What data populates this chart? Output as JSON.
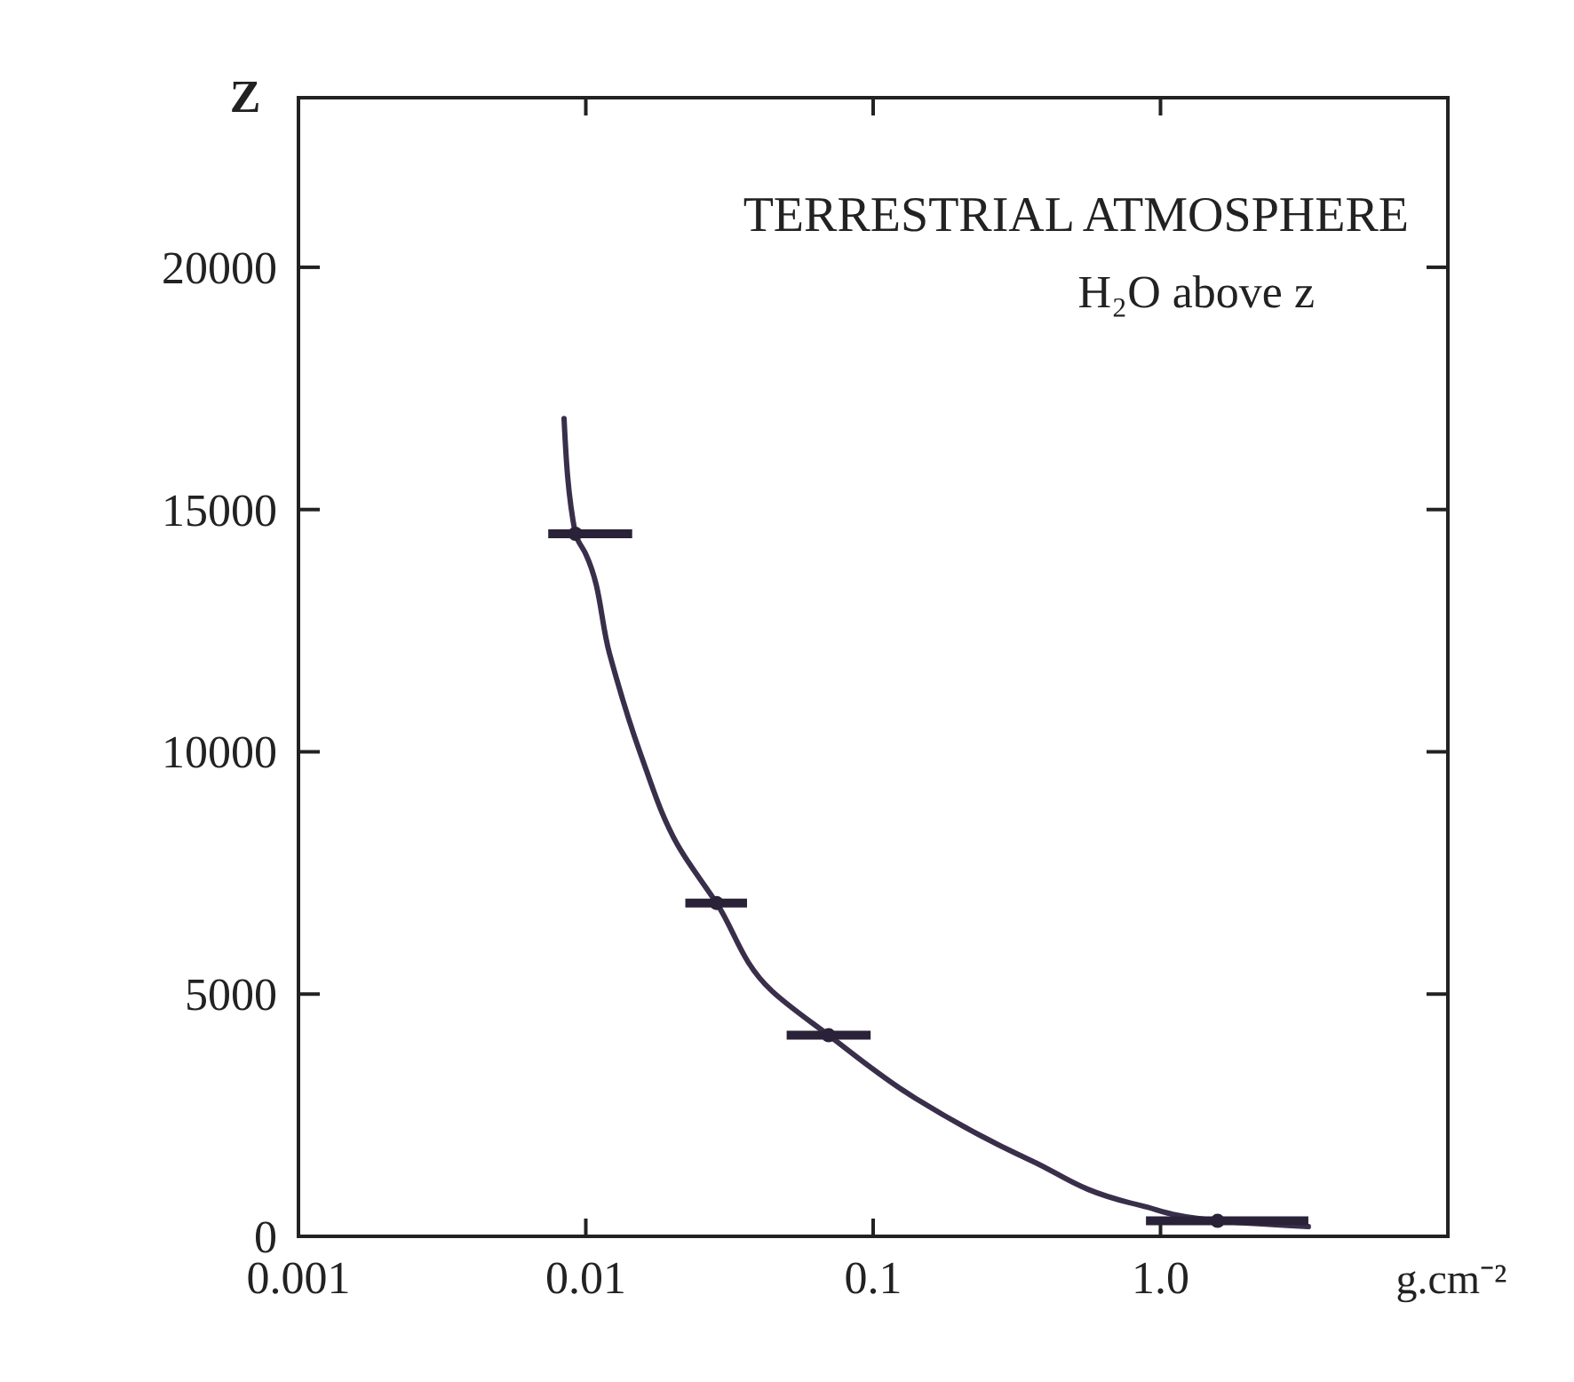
{
  "chart_data": {
    "type": "line",
    "title": "TERRESTRIAL ATMOSPHERE",
    "subtitle": "H₂O above z",
    "xlabel": "g.cm⁻²",
    "ylabel": "Z",
    "log": "x",
    "xlim": [
      0.001,
      10
    ],
    "ylim": [
      0,
      23500
    ],
    "xticks": [
      0.001,
      0.01,
      0.1,
      {
        "value": 1,
        "label": "1.0"
      }
    ],
    "yticks": [
      0,
      5000,
      10000,
      15000,
      20000
    ],
    "grid": false,
    "line_style": "solid",
    "series": [
      {
        "color": "#3a2f4a",
        "x": [
          0.0084,
          0.0092,
          0.01,
          0.0121,
          0.0155,
          0.021,
          0.0285,
          0.0443,
          0.07,
          0.141,
          0.356,
          0.85,
          1.58,
          3.27
        ],
        "values": [
          16880,
          14500,
          14080,
          12020,
          9960,
          8050,
          6880,
          5070,
          4150,
          2840,
          1560,
          640,
          320,
          200
        ]
      },
      {
        "type": "scatter",
        "marker": "circle",
        "color": "#2a2238",
        "x": [
          0.0092,
          0.0285,
          0.07,
          1.58
        ],
        "values": [
          14500,
          6880,
          4150,
          320
        ],
        "xerrors": [
          [
            0.0074,
            0.0145
          ],
          [
            0.0222,
            0.0364
          ],
          [
            0.05,
            0.098
          ],
          [
            0.89,
            3.27
          ]
        ]
      }
    ]
  }
}
